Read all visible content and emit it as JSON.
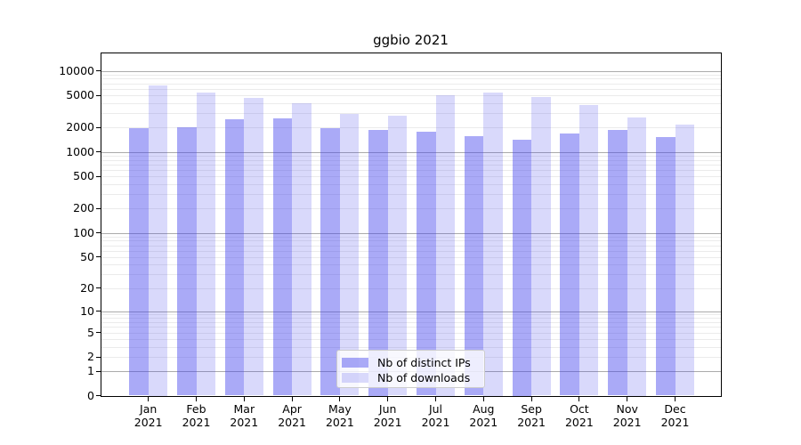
{
  "figure": {
    "title": "ggbio 2021"
  },
  "chart_data": {
    "type": "bar",
    "title": "ggbio 2021",
    "categories": [
      "Jan",
      "Feb",
      "Mar",
      "Apr",
      "May",
      "Jun",
      "Jul",
      "Aug",
      "Sep",
      "Oct",
      "Nov",
      "Dec"
    ],
    "year": "2021",
    "series": [
      {
        "name": "Nb of distinct IPs",
        "apparent_color": "#aaaaf7",
        "fill": "rgba(66,66,237,0.45)",
        "values": [
          1960,
          2030,
          2550,
          2620,
          1950,
          1890,
          1780,
          1575,
          1430,
          1700,
          1870,
          1510
        ]
      },
      {
        "name": "Nb of downloads",
        "apparent_color": "#dadaf7",
        "fill": "rgba(66,66,237,0.20)",
        "values": [
          6600,
          5350,
          4600,
          3950,
          2950,
          2780,
          5000,
          5450,
          4700,
          3800,
          2690,
          2190
        ]
      }
    ],
    "yscale": "log1p",
    "yticks": [
      0,
      1,
      2,
      5,
      10,
      20,
      50,
      100,
      200,
      500,
      1000,
      2000,
      5000,
      10000
    ],
    "major_gridlines": [
      1,
      10,
      100,
      1000,
      10000
    ],
    "grid": true,
    "legend_position": "lower center",
    "xlabel": "",
    "ylabel": "",
    "ylim_top": 16500
  }
}
